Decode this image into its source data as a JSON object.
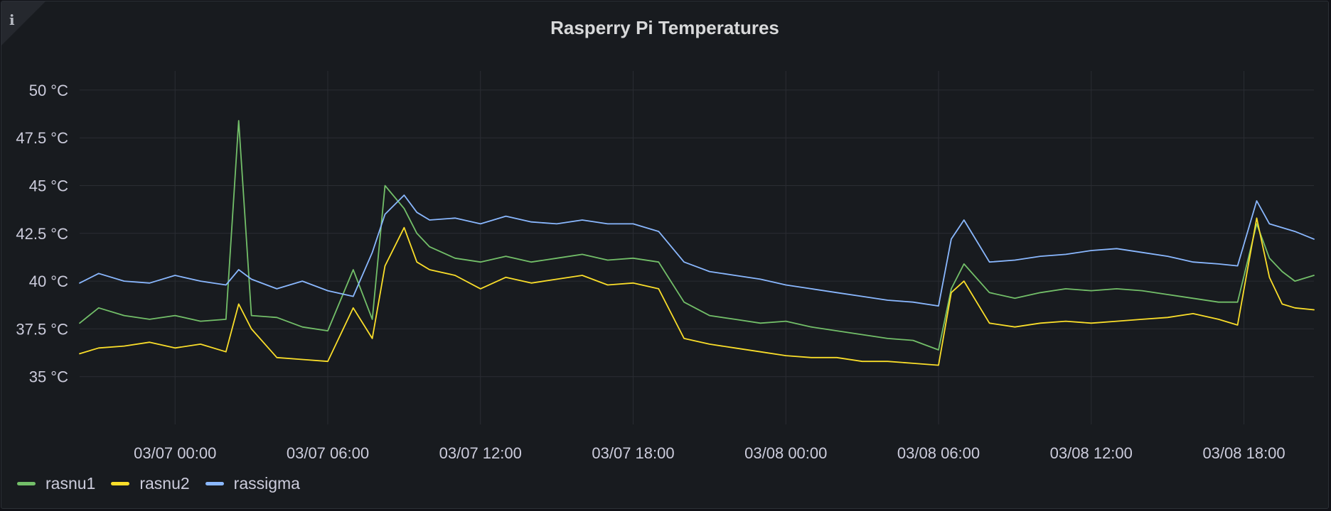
{
  "panel": {
    "info_icon": "info-icon"
  },
  "colors": {
    "background": "#181b1f",
    "grid": "#2a2d33",
    "text": "#ccccdc"
  },
  "chart_data": {
    "type": "line",
    "title": "Rasperry Pi Temperatures",
    "xlabel": "",
    "ylabel": "",
    "unit": "°C",
    "grid": true,
    "legend": "bottom-left",
    "x_range": [
      "03/06 20:15",
      "03/08 20:45"
    ],
    "x_hours_note": "",
    "ylim": [
      32.5,
      51
    ],
    "y_ticks": [
      "35 °C",
      "37.5 °C",
      "40 °C",
      "42.5 °C",
      "45 °C",
      "47.5 °C",
      "50 °C"
    ],
    "y_tick_values": [
      35,
      37.5,
      40,
      42.5,
      45,
      47.5,
      50
    ],
    "x_ticks": [
      "03/07 00:00",
      "03/07 06:00",
      "03/07 12:00",
      "03/07 18:00",
      "03/08 00:00",
      "03/08 06:00",
      "03/08 12:00",
      "03/08 18:00"
    ],
    "x": [
      "03/06 20:15",
      "03/06 21:00",
      "03/06 22:00",
      "03/06 23:00",
      "03/07 00:00",
      "03/07 01:00",
      "03/07 02:00",
      "03/07 02:30",
      "03/07 03:00",
      "03/07 04:00",
      "03/07 05:00",
      "03/07 06:00",
      "03/07 07:00",
      "03/07 07:45",
      "03/07 08:15",
      "03/07 09:00",
      "03/07 09:30",
      "03/07 10:00",
      "03/07 11:00",
      "03/07 12:00",
      "03/07 13:00",
      "03/07 14:00",
      "03/07 15:00",
      "03/07 16:00",
      "03/07 17:00",
      "03/07 18:00",
      "03/07 19:00",
      "03/07 20:00",
      "03/07 21:00",
      "03/07 22:00",
      "03/07 23:00",
      "03/08 00:00",
      "03/08 01:00",
      "03/08 02:00",
      "03/08 03:00",
      "03/08 04:00",
      "03/08 05:00",
      "03/08 06:00",
      "03/08 06:30",
      "03/08 07:00",
      "03/08 08:00",
      "03/08 09:00",
      "03/08 10:00",
      "03/08 11:00",
      "03/08 12:00",
      "03/08 13:00",
      "03/08 14:00",
      "03/08 15:00",
      "03/08 16:00",
      "03/08 17:00",
      "03/08 17:45",
      "03/08 18:30",
      "03/08 19:00",
      "03/08 19:30",
      "03/08 20:00",
      "03/08 20:45"
    ],
    "series": [
      {
        "name": "rasnu1",
        "color": "#73bf69",
        "values": [
          37.8,
          38.6,
          38.2,
          38.0,
          38.2,
          37.9,
          38.0,
          48.4,
          38.2,
          38.1,
          37.6,
          37.4,
          40.6,
          38.0,
          45.0,
          43.8,
          42.5,
          41.8,
          41.2,
          41.0,
          41.3,
          41.0,
          41.2,
          41.4,
          41.1,
          41.2,
          41.0,
          38.9,
          38.2,
          38.0,
          37.8,
          37.9,
          37.6,
          37.4,
          37.2,
          37.0,
          36.9,
          36.4,
          39.6,
          40.9,
          39.4,
          39.1,
          39.4,
          39.6,
          39.5,
          39.6,
          39.5,
          39.3,
          39.1,
          38.9,
          38.9,
          43.0,
          41.2,
          40.5,
          40.0,
          40.3
        ]
      },
      {
        "name": "rasnu2",
        "color": "#fade2a",
        "values": [
          36.2,
          36.5,
          36.6,
          36.8,
          36.5,
          36.7,
          36.3,
          38.8,
          37.5,
          36.0,
          35.9,
          35.8,
          38.6,
          37.0,
          40.8,
          42.8,
          41.0,
          40.6,
          40.3,
          39.6,
          40.2,
          39.9,
          40.1,
          40.3,
          39.8,
          39.9,
          39.6,
          37.0,
          36.7,
          36.5,
          36.3,
          36.1,
          36.0,
          36.0,
          35.8,
          35.8,
          35.7,
          35.6,
          39.4,
          40.0,
          37.8,
          37.6,
          37.8,
          37.9,
          37.8,
          37.9,
          38.0,
          38.1,
          38.3,
          38.0,
          37.7,
          43.3,
          40.2,
          38.8,
          38.6,
          38.5
        ]
      },
      {
        "name": "rassigma",
        "color": "#8ab8ff",
        "values": [
          39.9,
          40.4,
          40.0,
          39.9,
          40.3,
          40.0,
          39.8,
          40.6,
          40.1,
          39.6,
          40.0,
          39.5,
          39.2,
          41.5,
          43.5,
          44.5,
          43.6,
          43.2,
          43.3,
          43.0,
          43.4,
          43.1,
          43.0,
          43.2,
          43.0,
          43.0,
          42.6,
          41.0,
          40.5,
          40.3,
          40.1,
          39.8,
          39.6,
          39.4,
          39.2,
          39.0,
          38.9,
          38.7,
          42.2,
          43.2,
          41.0,
          41.1,
          41.3,
          41.4,
          41.6,
          41.7,
          41.5,
          41.3,
          41.0,
          40.9,
          40.8,
          44.2,
          43.0,
          42.8,
          42.6,
          42.2
        ]
      }
    ]
  }
}
